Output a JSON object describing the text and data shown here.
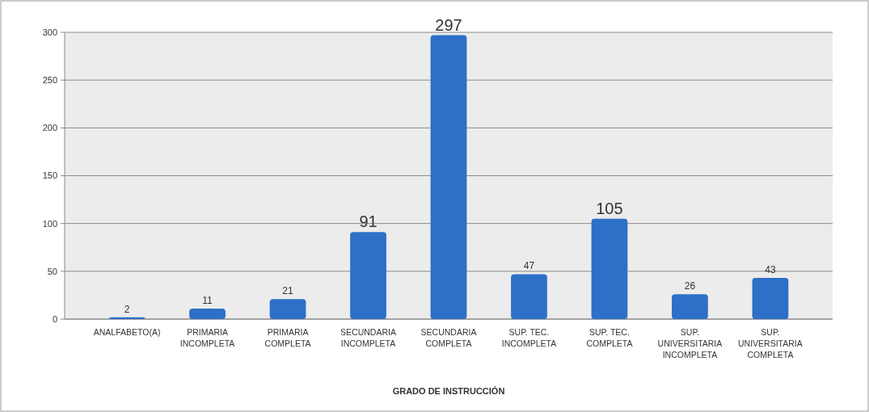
{
  "chart_data": {
    "type": "bar",
    "xlabel": "GRADO DE INSTRUCCIÓN",
    "categories": [
      "ANALFABETO(A)",
      "PRIMARIA INCOMPLETA",
      "PRIMARIA COMPLETA",
      "SECUNDARIA INCOMPLETA",
      "SECUNDARIA COMPLETA",
      "SUP. TEC. INCOMPLETA",
      "SUP. TEC. COMPLETA",
      "SUP. UNIVERSITARIA INCOMPLETA",
      "SUP. UNIVERSITARIA COMPLETA"
    ],
    "values": [
      2,
      11,
      21,
      91,
      297,
      47,
      105,
      26,
      43
    ],
    "color": "#2e6fc7",
    "data_labels": true,
    "ylim": [
      0,
      300
    ],
    "yticks": [
      0,
      50,
      100,
      150,
      200,
      250,
      300
    ],
    "grid": "y"
  }
}
